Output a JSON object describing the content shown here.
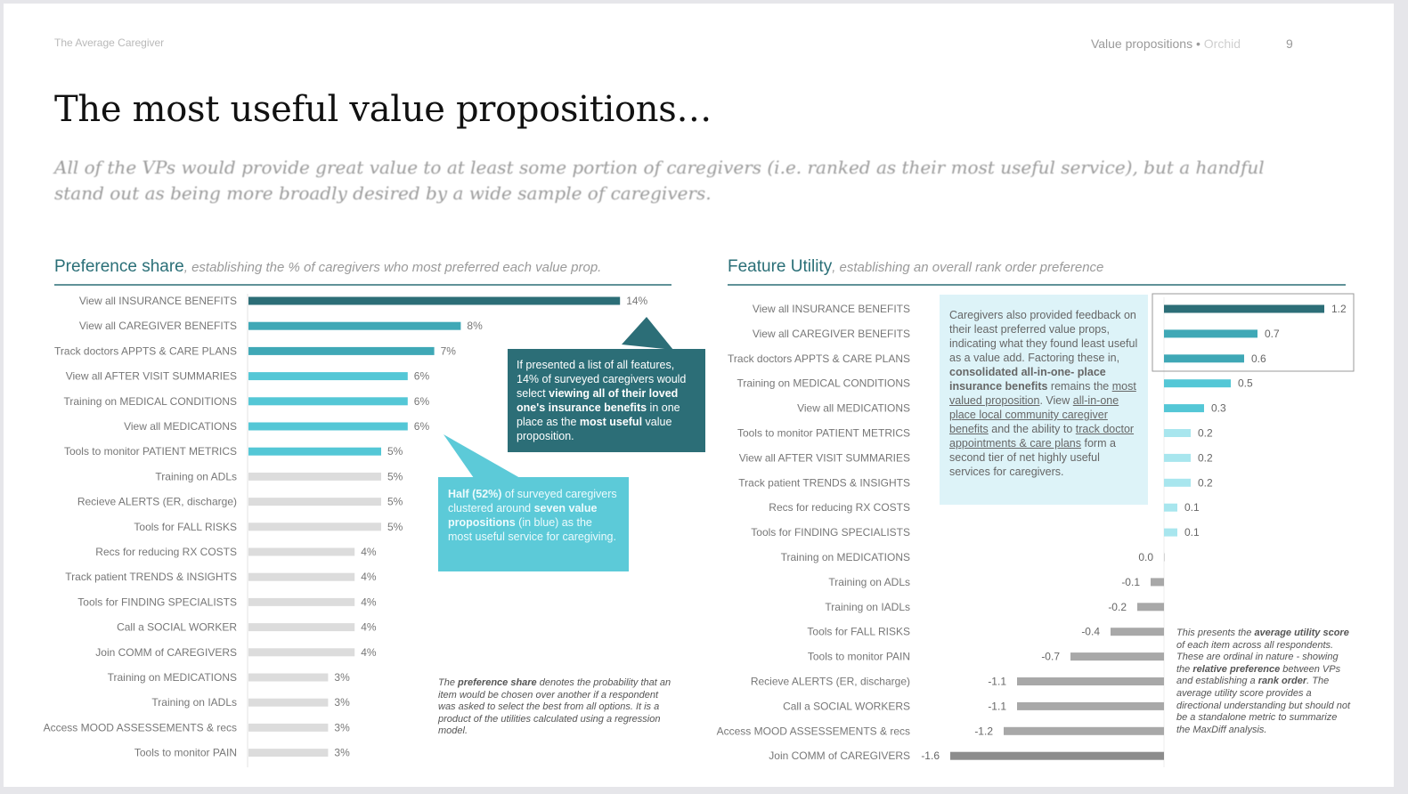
{
  "header": {
    "left": "The Average Caregiver",
    "right": "Value propositions •",
    "brand": "Orchid",
    "page": "9"
  },
  "title": "The most useful value propositions…",
  "subtitle": "All of the VPs would provide great value to at least some portion of caregivers (i.e. ranked as their most useful service), but a handful stand out as being more broadly desired by a wide sample of caregivers.",
  "left_section": {
    "title": "Preference share",
    "subtitle": ", establishing the % of caregivers who most preferred each value prop."
  },
  "right_section": {
    "title": "Feature Utility",
    "subtitle": ", establishing an overall rank order preference"
  },
  "callout_dark": {
    "p1": "If presented a list of all features, 14% of surveyed caregivers would select ",
    "b1": "viewing all of their loved one's insurance benefits",
    "p2": " in one place as the ",
    "b2": "most useful",
    "p3": " value proposition."
  },
  "callout_light": {
    "b1": "Half (52%)",
    "p1": " of surveyed caregivers clustered around ",
    "b2": "seven value propositions",
    "p2": " (in blue) as the most useful service for caregiving."
  },
  "callout_right": {
    "p1": "Caregivers also provided feedback on their least preferred value props, indicating what they found least useful as a value add. Factoring these in, ",
    "b1": "consolidated all-in-one- place insurance benefits",
    "p2": " remains the ",
    "u1": "most valued proposition",
    "p3": ". View ",
    "u2": "all-in-one place local community caregiver benefits",
    "p4": " and the ability to ",
    "u3": "track doctor appointments & care plans",
    "p5": " form a second tier of net highly useful services for caregivers."
  },
  "note_left": {
    "p1": "The ",
    "b1": "preference share",
    "p2": " denotes the probability that an item would be chosen over another if a respondent was asked to select the best from all options. It is a product of the utilities calculated using a regression model."
  },
  "note_right": {
    "p1": "This presents the ",
    "b1": "average utility score",
    "p2": " of each item across all respondents. These are ordinal in nature - showing the ",
    "b2": "relative preference",
    "p3": " between VPs and establishing a ",
    "b3": "rank order",
    "p4": ". The average utility score provides a directional understanding but should not be a standalone metric to summarize the MaxDiff analysis."
  },
  "colors": {
    "dark": "#2c6e77",
    "mid": "#3fa8b6",
    "light": "#54c7d6",
    "pale": "#a8e6ee",
    "gray": "#dcdcdc",
    "neg": "#a8a8a8",
    "neg_dark": "#8c8c8c"
  },
  "chart_data": [
    {
      "type": "bar",
      "orientation": "horizontal",
      "categories": [
        "View all INSURANCE BENEFITS",
        "View all CAREGIVER BENEFITS",
        "Track doctors APPTS & CARE PLANS",
        "View all AFTER VISIT SUMMARIES",
        "Training on MEDICAL CONDITIONS",
        "View all MEDICATIONS",
        "Tools to monitor PATIENT METRICS",
        "Training on ADLs",
        "Recieve ALERTS (ER, discharge)",
        "Tools for FALL RISKS",
        "Recs for reducing RX COSTS",
        "Track patient TRENDS & INSIGHTS",
        "Tools for FINDING SPECIALISTS",
        "Call a SOCIAL WORKER",
        "Join COMM of CAREGIVERS",
        "Training on MEDICATIONS",
        "Training on IADLs",
        "Access MOOD ASSESSEMENTS & recs",
        "Tools to monitor PAIN"
      ],
      "values": [
        14,
        8,
        7,
        6,
        6,
        6,
        5,
        5,
        5,
        5,
        4,
        4,
        4,
        4,
        4,
        3,
        3,
        3,
        3
      ],
      "labels": [
        "14%",
        "8%",
        "7%",
        "6%",
        "6%",
        "6%",
        "5%",
        "5%",
        "5%",
        "5%",
        "4%",
        "4%",
        "4%",
        "4%",
        "4%",
        "3%",
        "3%",
        "3%",
        "3%"
      ],
      "tiers": [
        "dark",
        "mid",
        "mid",
        "light",
        "light",
        "light",
        "light",
        "gray",
        "gray",
        "gray",
        "gray",
        "gray",
        "gray",
        "gray",
        "gray",
        "gray",
        "gray",
        "gray",
        "gray"
      ]
    },
    {
      "type": "bar",
      "orientation": "horizontal",
      "categories": [
        "View all INSURANCE BENEFITS",
        "View all CAREGIVER BENEFITS",
        "Track doctors APPTS & CARE PLANS",
        "Training on MEDICAL CONDITIONS",
        "View all MEDICATIONS",
        "Tools to monitor PATIENT METRICS",
        "View all AFTER VISIT SUMMARIES",
        "Track patient TRENDS & INSIGHTS",
        "Recs for reducing RX COSTS",
        "Tools for FINDING SPECIALISTS",
        "Training on MEDICATIONS",
        "Training on ADLs",
        "Training on IADLs",
        "Tools for FALL RISKS",
        "Tools to monitor PAIN",
        "Recieve ALERTS (ER, discharge)",
        "Call a SOCIAL WORKERS",
        "Access MOOD ASSESSEMENTS & recs",
        "Join COMM of CAREGIVERS"
      ],
      "values": [
        1.2,
        0.7,
        0.6,
        0.5,
        0.3,
        0.2,
        0.2,
        0.2,
        0.1,
        0.1,
        0.0,
        -0.1,
        -0.2,
        -0.4,
        -0.7,
        -1.1,
        -1.1,
        -1.2,
        -1.6
      ],
      "labels": [
        "1.2",
        "0.7",
        "0.6",
        "0.5",
        "0.3",
        "0.2",
        "0.2",
        "0.2",
        "0.1",
        "0.1",
        "0.0",
        "-0.1",
        "-0.2",
        "-0.4",
        "-0.7",
        "-1.1",
        "-1.1",
        "-1.2",
        "-1.6"
      ],
      "tiers": [
        "dark",
        "mid",
        "mid",
        "light",
        "light",
        "pale",
        "pale",
        "pale",
        "pale",
        "pale",
        "neg",
        "neg",
        "neg",
        "neg",
        "neg",
        "neg",
        "neg",
        "neg",
        "neg_dark"
      ]
    }
  ]
}
